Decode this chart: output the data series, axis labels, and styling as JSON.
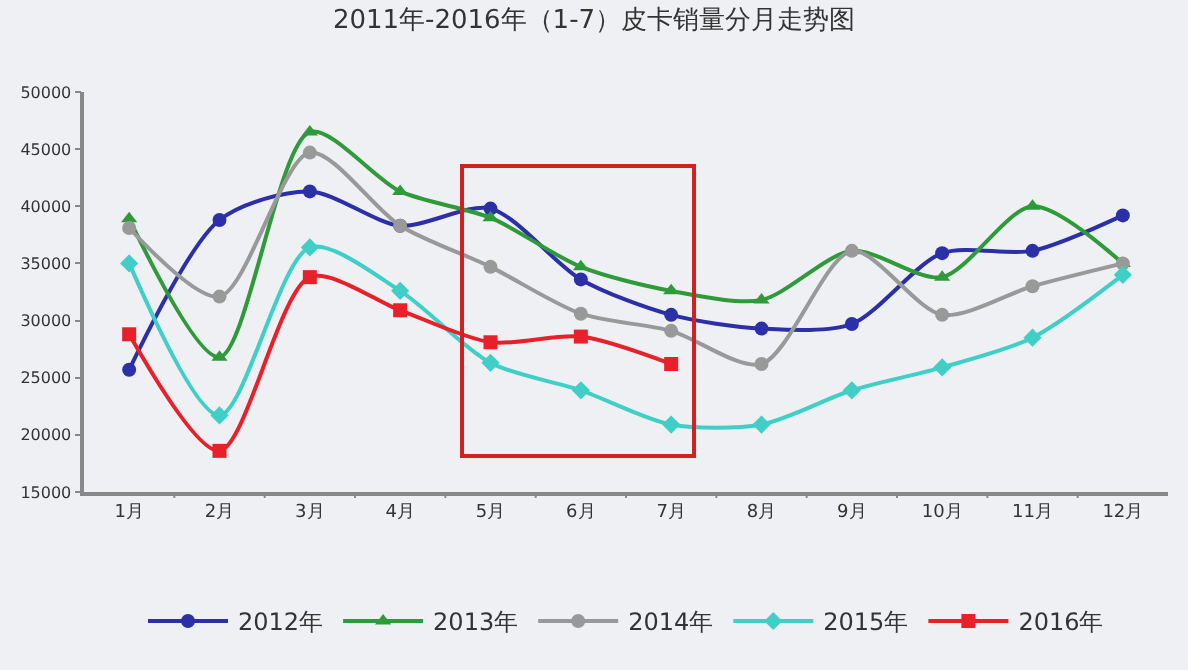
{
  "chart_data": {
    "type": "line",
    "title": "2011年-2016年（1-7）皮卡销量分月走势图",
    "categories": [
      "1月",
      "2月",
      "3月",
      "4月",
      "5月",
      "6月",
      "7月",
      "8月",
      "9月",
      "10月",
      "11月",
      "12月"
    ],
    "series": [
      {
        "name": "2012年",
        "color": "#2b2fa8",
        "marker": "circle",
        "values": [
          25700,
          38800,
          41300,
          38300,
          39800,
          33600,
          30500,
          29300,
          29700,
          35900,
          36100,
          39200
        ]
      },
      {
        "name": "2013年",
        "color": "#2e9a3a",
        "marker": "triangle",
        "values": [
          38900,
          26800,
          46500,
          41300,
          39000,
          34700,
          32600,
          31800,
          36100,
          33800,
          40000,
          35000
        ]
      },
      {
        "name": "2014年",
        "color": "#999999",
        "marker": "circle",
        "values": [
          38100,
          32100,
          44700,
          38300,
          34700,
          30600,
          29100,
          26200,
          36100,
          30500,
          33000,
          35000
        ]
      },
      {
        "name": "2015年",
        "color": "#3fcfc6",
        "marker": "diamond",
        "values": [
          35000,
          21700,
          36400,
          32600,
          26300,
          23900,
          20900,
          20900,
          23900,
          25900,
          28500,
          34000
        ]
      },
      {
        "name": "2016年",
        "color": "#e8202a",
        "marker": "square",
        "values": [
          28800,
          18600,
          33800,
          30900,
          28100,
          28600,
          26200,
          null,
          null,
          null,
          null,
          null
        ]
      }
    ],
    "ylim": [
      15000,
      50000
    ],
    "yticks": [
      15000,
      20000,
      25000,
      30000,
      35000,
      40000,
      45000,
      50000
    ],
    "grid": false,
    "legend": "bottom",
    "line_style": "solid"
  }
}
